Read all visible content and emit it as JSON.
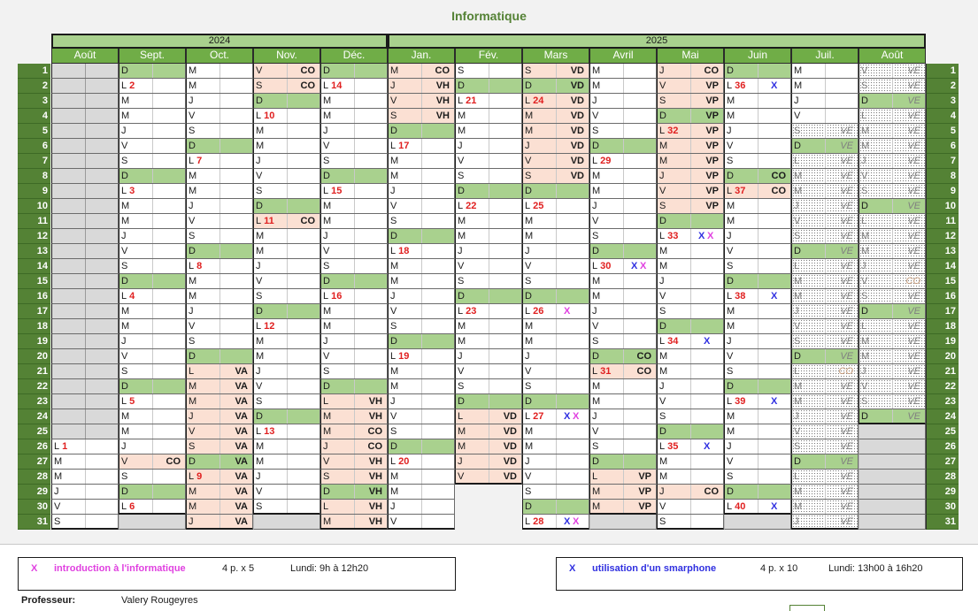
{
  "title": "Informatique",
  "years": [
    "2024",
    "2025"
  ],
  "months": [
    "Août",
    "Sept.",
    "Oct.",
    "Nov.",
    "Déc.",
    "Jan.",
    "Fév.",
    "Mars",
    "Avril",
    "Mai",
    "Juin",
    "Juil.",
    "Août"
  ],
  "day_numbers": [
    "1",
    "2",
    "3",
    "4",
    "5",
    "6",
    "7",
    "8",
    "9",
    "10",
    "11",
    "12",
    "13",
    "14",
    "15",
    "16",
    "17",
    "18",
    "19",
    "20",
    "21",
    "22",
    "23",
    "24",
    "25",
    "26",
    "27",
    "28",
    "29",
    "30",
    "31"
  ],
  "colors": {
    "header_green": "#70ad47",
    "dark_green": "#548235",
    "light_green": "#a9d18e",
    "peach": "#fbe0d3",
    "red_number": "#e02020",
    "mark_pink": "#e040e0",
    "mark_blue": "#3030e0"
  },
  "columns": [
    {
      "month": "Août 2024",
      "days": [
        "gr",
        "gr",
        "gr",
        "gr",
        "gr",
        "gr",
        "gr",
        "gr",
        "gr",
        "gr",
        "gr",
        "gr",
        "gr",
        "gr",
        "gr",
        "gr",
        "gr",
        "gr",
        "gr",
        "gr",
        "gr",
        "gr",
        "gr",
        "gr",
        "gr",
        "w|L|1",
        "w|M",
        "w|M",
        "w|J",
        "w|V",
        "w|S"
      ]
    },
    {
      "month": "Sept. 2024",
      "days": [
        "g|D",
        "w|L|2",
        "w|M",
        "w|M",
        "w|J",
        "w|V",
        "w|S",
        "g|D",
        "w|L|3",
        "w|M",
        "w|M",
        "w|J",
        "w|V",
        "w|S",
        "g|D",
        "w|L|4",
        "w|M",
        "w|M",
        "w|J",
        "w|V",
        "w|S",
        "g|D",
        "w|L|5",
        "w|M",
        "w|M",
        "w|J",
        "p|V||CO",
        "w|S",
        "g|D",
        "w|L|6",
        "emp"
      ]
    },
    {
      "month": "Oct. 2024",
      "days": [
        "w|M",
        "w|M",
        "w|J",
        "w|V",
        "w|S",
        "g|D",
        "w|L|7",
        "w|M",
        "w|M",
        "w|J",
        "w|V",
        "w|S",
        "g|D",
        "w|L|8",
        "w|M",
        "w|M",
        "w|J",
        "w|V",
        "w|S",
        "g|D",
        "p|L||VA",
        "p|M||VA",
        "p|M||VA",
        "p|J||VA",
        "p|V||VA",
        "p|S||VA",
        "g|D||VA",
        "p|L|9|VA",
        "p|M||VA",
        "p|M||VA",
        "p|J||VA"
      ]
    },
    {
      "month": "Nov. 2024",
      "days": [
        "p|V||CO",
        "p|S||CO",
        "g|D",
        "w|L|10",
        "w|M",
        "w|M",
        "w|J",
        "w|V",
        "w|S",
        "g|D",
        "p|L|11|CO",
        "w|M",
        "w|M",
        "w|J",
        "w|V",
        "w|S",
        "g|D",
        "w|L|12",
        "w|M",
        "w|M",
        "w|J",
        "w|V",
        "w|S",
        "g|D",
        "w|L|13",
        "w|M",
        "w|M",
        "w|J",
        "w|V",
        "w|S",
        "emp"
      ]
    },
    {
      "month": "Déc. 2024",
      "days": [
        "g|D",
        "w|L|14",
        "w|M",
        "w|M",
        "w|J",
        "w|V",
        "w|S",
        "g|D",
        "w|L|15",
        "w|M",
        "w|M",
        "w|J",
        "w|V",
        "w|S",
        "g|D",
        "w|L|16",
        "w|M",
        "w|M",
        "w|J",
        "w|V",
        "w|S",
        "g|D",
        "p|L||VH",
        "p|M||VH",
        "p|M||CO",
        "p|J||CO",
        "p|V||VH",
        "p|S||VH",
        "g|D||VH",
        "p|L||VH",
        "p|M||VH"
      ]
    },
    {
      "month": "Jan. 2025",
      "days": [
        "p|M||CO",
        "p|J||VH",
        "p|V||VH",
        "p|S||VH",
        "g|D",
        "w|L|17",
        "w|M",
        "w|M",
        "w|J",
        "w|V",
        "w|S",
        "g|D",
        "w|L|18",
        "w|M",
        "w|M",
        "w|J",
        "w|V",
        "w|S",
        "g|D",
        "w|L|19",
        "w|M",
        "w|M",
        "w|J",
        "w|V",
        "w|S",
        "g|D",
        "w|L|20",
        "w|M",
        "w|M",
        "w|J",
        "w|V"
      ]
    },
    {
      "month": "Fév. 2025",
      "days": [
        "w|S",
        "g|D",
        "w|L|21",
        "w|M",
        "w|M",
        "w|J",
        "w|V",
        "w|S",
        "g|D",
        "w|L|22",
        "w|M",
        "w|M",
        "w|J",
        "w|V",
        "w|S",
        "g|D",
        "w|L|23",
        "w|M",
        "w|M",
        "w|J",
        "w|V",
        "w|S",
        "g|D",
        "p|L||VD",
        "p|M||VD",
        "p|M||VD",
        "p|J||VD",
        "p|V||VD",
        "blank",
        "blank",
        "blank"
      ]
    },
    {
      "month": "Mars 2025",
      "days": [
        "p|S||VD",
        "g|D||VD",
        "p|L|24|VD",
        "p|M||VD",
        "p|M||VD",
        "p|J||VD",
        "p|V||VD",
        "p|S||VD",
        "g|D",
        "w|L|25",
        "w|M",
        "w|M",
        "w|J",
        "w|V",
        "w|S",
        "g|D",
        "w|L|26|x",
        "w|M",
        "w|M",
        "w|J",
        "w|V",
        "w|S",
        "g|D",
        "w|L|27|xx",
        "w|M",
        "w|M",
        "w|J",
        "w|V",
        "w|S",
        "g|D",
        "w|L|28|xx"
      ]
    },
    {
      "month": "Avril 2025",
      "days": [
        "w|M",
        "w|M",
        "w|J",
        "w|V",
        "w|S",
        "g|D",
        "w|L|29",
        "w|M",
        "w|M",
        "w|J",
        "w|V",
        "w|S",
        "g|D",
        "w|L|30|xx",
        "w|M",
        "w|M",
        "w|J",
        "w|V",
        "w|S",
        "g|D||CO",
        "p|L|31|CO",
        "w|M",
        "w|M",
        "w|J",
        "w|V",
        "w|S",
        "g|D",
        "p|L||VP",
        "p|M||VP",
        "p|M||VP",
        "emp"
      ]
    },
    {
      "month": "Mai 2025",
      "days": [
        "p|J||CO",
        "p|V||VP",
        "p|S||VP",
        "g|D||VP",
        "p|L|32|VP",
        "p|M||VP",
        "p|M||VP",
        "p|J||VP",
        "p|V||VP",
        "p|S||VP",
        "g|D",
        "w|L|33|xx",
        "w|M",
        "w|M",
        "w|J",
        "w|V",
        "w|S",
        "g|D",
        "w|L|34|X",
        "w|M",
        "w|M",
        "w|J",
        "w|V",
        "w|S",
        "g|D",
        "w|L|35|X",
        "w|M",
        "w|M",
        "p|J||CO",
        "w|V",
        "w|S"
      ]
    },
    {
      "month": "Juin 2025",
      "days": [
        "g|D",
        "w|L|36|X",
        "w|M",
        "w|M",
        "w|J",
        "w|V",
        "w|S",
        "g|D||CO",
        "p|L|37|CO",
        "w|M",
        "w|M",
        "w|J",
        "w|V",
        "w|S",
        "g|D",
        "w|L|38|X",
        "w|M",
        "w|M",
        "w|J",
        "w|V",
        "w|S",
        "g|D",
        "w|L|39|X",
        "w|M",
        "w|M",
        "w|J",
        "w|V",
        "w|S",
        "g|D",
        "w|L|40|X",
        "emp"
      ]
    },
    {
      "month": "Juil. 2025",
      "days": [
        "w|M",
        "w|M",
        "w|J",
        "w|V",
        "dt|S||VE",
        "g|D||VE",
        "dt|L||VE",
        "dt|M||VE",
        "dt|M||VE",
        "dt|J||VE",
        "dt|V||VE",
        "dt|S||VE",
        "g|D||VE",
        "dt|L||VE",
        "dt|M||VE",
        "dt|M||VE",
        "dt|J||VE",
        "dt|V||VE",
        "dt|S||VE",
        "g|D||VE",
        "dt|L||CO",
        "dt|M||VE",
        "dt|M||VE",
        "dt|J||VE",
        "dt|V||VE",
        "dt|S||VE",
        "g|D||VE",
        "dt|L||VE",
        "dt|M||VE",
        "dt|M||VE",
        "dt|J||VE"
      ]
    },
    {
      "month": "Août 2025",
      "days": [
        "dt|V||VE",
        "dt|S||VE",
        "g|D||VE",
        "dt|L||VE",
        "dt|M||VE",
        "dt|M||VE",
        "dt|J||VE",
        "dt|V||VE",
        "dt|S||VE",
        "g|D||VE",
        "dt|L||VE",
        "dt|M||VE",
        "dt|M||VE",
        "dt|J||VE",
        "dt|V||CO",
        "dt|S||VE",
        "g|D||VE",
        "dt|L||VE",
        "dt|M||VE",
        "dt|M||VE",
        "dt|J||VE",
        "dt|V||VE",
        "dt|S||VE",
        "g|D||VE",
        "emp",
        "emp",
        "emp",
        "emp",
        "emp",
        "emp",
        "emp"
      ]
    }
  ],
  "legend": [
    {
      "mark": "X",
      "label": "introduction à l'informatique",
      "periods": "4 p. x 5",
      "schedule": "Lundi: 9h à 12h20",
      "color": "#e040e0"
    },
    {
      "mark": "X",
      "label": "utilisation d'un smarphone",
      "periods": "4 p. x 10",
      "schedule": "Lundi: 13h00 à 16h20",
      "color": "#3030e0"
    }
  ],
  "professor": {
    "label": "Professeur:",
    "name": "Valery Rougeyres"
  }
}
